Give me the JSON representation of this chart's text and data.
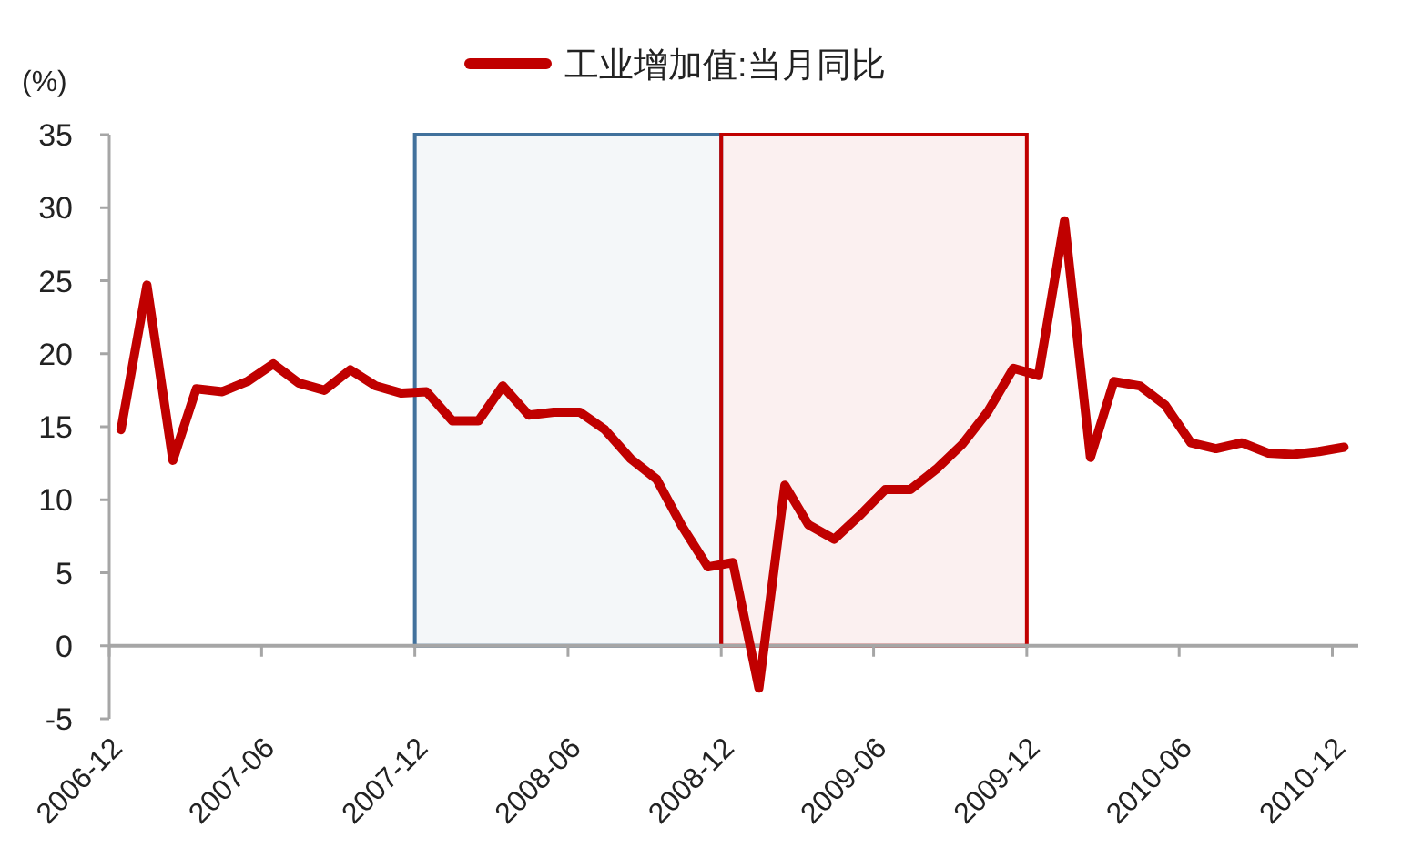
{
  "chart_data": {
    "type": "line",
    "ylabel": "(%)",
    "legend": "top",
    "x": [
      "2006-12-15",
      "2007-01-15",
      "2007-02-15",
      "2007-03-15",
      "2007-04-15",
      "2007-05-15",
      "2007-06-15",
      "2007-07-15",
      "2007-08-15",
      "2007-09-15",
      "2007-10-15",
      "2007-11-15",
      "2007-12-15",
      "2008-01-15",
      "2008-02-15",
      "2008-03-15",
      "2008-04-15",
      "2008-05-15",
      "2008-06-15",
      "2008-07-15",
      "2008-08-15",
      "2008-09-15",
      "2008-10-15",
      "2008-11-15",
      "2008-12-15",
      "2009-01-15",
      "2009-02-15",
      "2009-03-15",
      "2009-04-15",
      "2009-05-15",
      "2009-06-15",
      "2009-07-15",
      "2009-08-15",
      "2009-09-15",
      "2009-10-15",
      "2009-11-15",
      "2009-12-15",
      "2010-01-15",
      "2010-02-15",
      "2010-03-15",
      "2010-04-15",
      "2010-05-15",
      "2010-06-15",
      "2010-07-15",
      "2010-08-15",
      "2010-09-15",
      "2010-10-15",
      "2010-11-15",
      "2010-12-15"
    ],
    "series": [
      {
        "name": "工业增加值:当月同比",
        "color": "#c00000",
        "values": [
          14.8,
          24.7,
          12.7,
          17.6,
          17.4,
          18.1,
          19.3,
          18.0,
          17.5,
          18.9,
          17.8,
          17.3,
          17.4,
          15.4,
          15.4,
          17.8,
          15.8,
          16.0,
          16.0,
          14.8,
          12.8,
          11.4,
          8.2,
          5.4,
          5.7,
          -2.9,
          11.0,
          8.3,
          7.3,
          8.9,
          10.7,
          10.7,
          12.1,
          13.8,
          16.0,
          19.0,
          18.5,
          29.1,
          12.9,
          18.1,
          17.8,
          16.5,
          13.9,
          13.5,
          13.9,
          13.2,
          13.1,
          13.3,
          13.6
        ]
      }
    ],
    "xlim": [
      "2006-12-01",
      "2011-01-01"
    ],
    "xticks": [
      "2006-12",
      "2007-06",
      "2007-12",
      "2008-06",
      "2008-12",
      "2009-06",
      "2009-12",
      "2010-06",
      "2010-12"
    ],
    "ylim": [
      -5,
      35
    ],
    "yticks": [
      -5,
      0,
      5,
      10,
      15,
      20,
      25,
      30,
      35
    ],
    "bands": [
      {
        "axis": "x",
        "from": "2007-12",
        "to": "2008-12",
        "color": "#41719c"
      },
      {
        "axis": "x",
        "from": "2008-12",
        "to": "2009-12",
        "color": "#c00000"
      }
    ]
  }
}
